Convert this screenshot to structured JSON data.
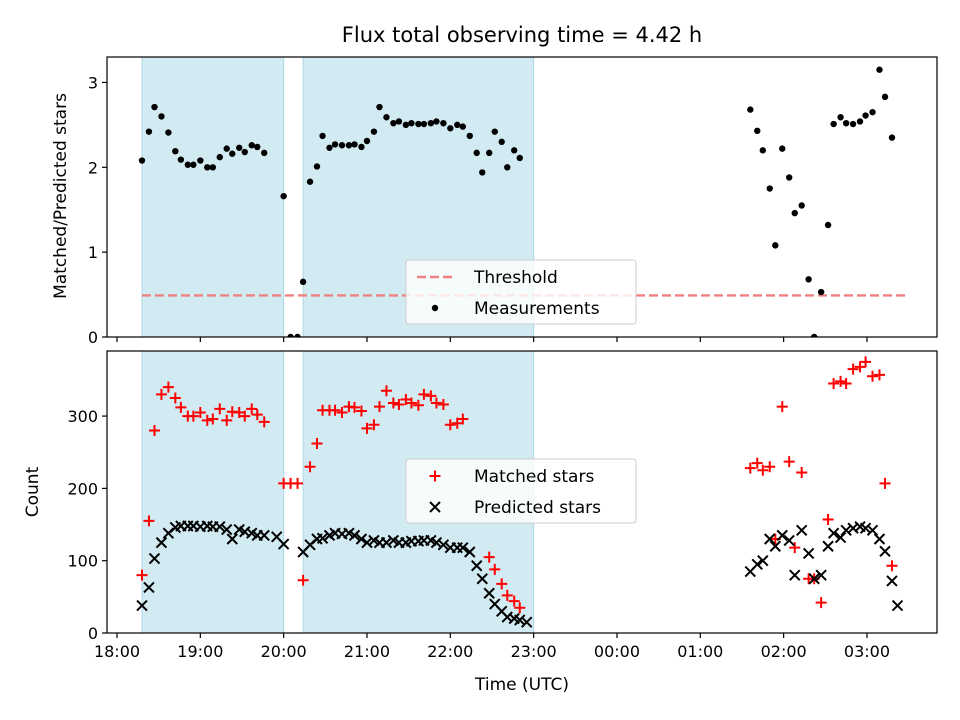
{
  "chart_data": [
    {
      "type": "scatter",
      "title": "Flux total observing time = 4.42 h",
      "ylabel": "Matched/Predicted stars",
      "xlabel": "",
      "ylim": [
        0,
        3.3
      ],
      "yticks": [
        0,
        1,
        2,
        3
      ],
      "legend_placement": "lower-center",
      "shaded_intervals": [
        [
          "18:18",
          "20:00"
        ],
        [
          "20:14",
          "23:00"
        ]
      ],
      "shade_color": "#add8e6",
      "threshold": {
        "name": "Threshold",
        "value": 0.49,
        "x_range": [
          "18:18",
          "03:30"
        ],
        "color": "#f08080"
      },
      "series": [
        {
          "name": "Measurements",
          "color": "#000000",
          "marker": "dot",
          "points": [
            [
              "18:18",
              2.08
            ],
            [
              "18:23",
              2.42
            ],
            [
              "18:27",
              2.71
            ],
            [
              "18:32",
              2.6
            ],
            [
              "18:37",
              2.41
            ],
            [
              "18:42",
              2.19
            ],
            [
              "18:46",
              2.09
            ],
            [
              "18:51",
              2.03
            ],
            [
              "18:55",
              2.03
            ],
            [
              "19:00",
              2.08
            ],
            [
              "19:05",
              2.0
            ],
            [
              "19:09",
              2.0
            ],
            [
              "19:14",
              2.12
            ],
            [
              "19:19",
              2.22
            ],
            [
              "19:23",
              2.16
            ],
            [
              "19:28",
              2.23
            ],
            [
              "19:32",
              2.18
            ],
            [
              "19:37",
              2.26
            ],
            [
              "19:41",
              2.24
            ],
            [
              "19:46",
              2.17
            ],
            [
              "20:00",
              1.66
            ],
            [
              "20:05",
              0.0
            ],
            [
              "20:10",
              0.0
            ],
            [
              "20:14",
              0.65
            ],
            [
              "20:19",
              1.83
            ],
            [
              "20:24",
              2.01
            ],
            [
              "20:28",
              2.37
            ],
            [
              "20:33",
              2.23
            ],
            [
              "20:37",
              2.27
            ],
            [
              "20:42",
              2.26
            ],
            [
              "20:47",
              2.26
            ],
            [
              "20:51",
              2.27
            ],
            [
              "20:56",
              2.24
            ],
            [
              "21:00",
              2.31
            ],
            [
              "21:05",
              2.42
            ],
            [
              "21:09",
              2.71
            ],
            [
              "21:14",
              2.59
            ],
            [
              "21:19",
              2.52
            ],
            [
              "21:23",
              2.54
            ],
            [
              "21:28",
              2.5
            ],
            [
              "21:32",
              2.52
            ],
            [
              "21:37",
              2.51
            ],
            [
              "21:41",
              2.51
            ],
            [
              "21:46",
              2.52
            ],
            [
              "21:50",
              2.54
            ],
            [
              "21:55",
              2.52
            ],
            [
              "22:00",
              2.46
            ],
            [
              "22:05",
              2.5
            ],
            [
              "22:09",
              2.48
            ],
            [
              "22:14",
              2.37
            ],
            [
              "22:19",
              2.17
            ],
            [
              "22:23",
              1.94
            ],
            [
              "22:28",
              2.17
            ],
            [
              "22:32",
              2.42
            ],
            [
              "22:37",
              2.3
            ],
            [
              "22:41",
              2.0
            ],
            [
              "22:46",
              2.2
            ],
            [
              "22:50",
              2.11
            ],
            [
              "01:36",
              2.68
            ],
            [
              "01:41",
              2.43
            ],
            [
              "01:45",
              2.2
            ],
            [
              "01:50",
              1.75
            ],
            [
              "01:54",
              1.08
            ],
            [
              "01:59",
              2.22
            ],
            [
              "02:04",
              1.88
            ],
            [
              "02:08",
              1.46
            ],
            [
              "02:13",
              1.55
            ],
            [
              "02:18",
              0.68
            ],
            [
              "02:22",
              0.0
            ],
            [
              "02:27",
              0.53
            ],
            [
              "02:32",
              1.32
            ],
            [
              "02:36",
              2.51
            ],
            [
              "02:41",
              2.59
            ],
            [
              "02:45",
              2.52
            ],
            [
              "02:50",
              2.51
            ],
            [
              "02:55",
              2.54
            ],
            [
              "02:59",
              2.61
            ],
            [
              "03:04",
              2.65
            ],
            [
              "03:09",
              3.15
            ],
            [
              "03:13",
              2.83
            ],
            [
              "03:18",
              2.35
            ]
          ]
        }
      ],
      "legend": [
        "Threshold",
        "Measurements"
      ]
    },
    {
      "type": "scatter",
      "title": "",
      "ylabel": "Count",
      "xlabel": "Time (UTC)",
      "ylim": [
        0,
        390
      ],
      "yticks": [
        0,
        100,
        200,
        300
      ],
      "legend_placement": "center",
      "x_tick_labels": [
        "18:00",
        "19:00",
        "20:00",
        "21:00",
        "22:00",
        "23:00",
        "00:00",
        "01:00",
        "02:00",
        "03:00"
      ],
      "series": [
        {
          "name": "Matched stars",
          "color": "#ff0000",
          "marker": "plus",
          "points": [
            [
              "18:18",
              80
            ],
            [
              "18:23",
              155
            ],
            [
              "18:27",
              280
            ],
            [
              "18:32",
              330
            ],
            [
              "18:37",
              340
            ],
            [
              "18:42",
              325
            ],
            [
              "18:46",
              312
            ],
            [
              "18:51",
              300
            ],
            [
              "18:55",
              300
            ],
            [
              "19:00",
              305
            ],
            [
              "19:05",
              294
            ],
            [
              "19:09",
              296
            ],
            [
              "19:14",
              310
            ],
            [
              "19:19",
              294
            ],
            [
              "19:23",
              306
            ],
            [
              "19:28",
              305
            ],
            [
              "19:32",
              300
            ],
            [
              "19:37",
              310
            ],
            [
              "19:41",
              302
            ],
            [
              "19:46",
              292
            ],
            [
              "20:00",
              207
            ],
            [
              "20:05",
              207
            ],
            [
              "20:10",
              207
            ],
            [
              "20:14",
              73
            ],
            [
              "20:19",
              230
            ],
            [
              "20:24",
              262
            ],
            [
              "20:28",
              308
            ],
            [
              "20:33",
              308
            ],
            [
              "20:37",
              308
            ],
            [
              "20:42",
              305
            ],
            [
              "20:47",
              313
            ],
            [
              "20:51",
              312
            ],
            [
              "20:56",
              307
            ],
            [
              "21:00",
              283
            ],
            [
              "21:05",
              288
            ],
            [
              "21:09",
              313
            ],
            [
              "21:14",
              335
            ],
            [
              "21:19",
              318
            ],
            [
              "21:23",
              316
            ],
            [
              "21:28",
              323
            ],
            [
              "21:32",
              318
            ],
            [
              "21:37",
              315
            ],
            [
              "21:41",
              330
            ],
            [
              "21:46",
              328
            ],
            [
              "21:50",
              318
            ],
            [
              "21:55",
              316
            ],
            [
              "22:00",
              288
            ],
            [
              "22:05",
              290
            ],
            [
              "22:09",
              296
            ],
            [
              "22:28",
              105
            ],
            [
              "22:32",
              88
            ],
            [
              "22:37",
              68
            ],
            [
              "22:41",
              52
            ],
            [
              "22:46",
              44
            ],
            [
              "22:50",
              35
            ],
            [
              "01:36",
              228
            ],
            [
              "01:41",
              235
            ],
            [
              "01:45",
              225
            ],
            [
              "01:50",
              230
            ],
            [
              "01:54",
              130
            ],
            [
              "01:59",
              313
            ],
            [
              "02:04",
              237
            ],
            [
              "02:08",
              118
            ],
            [
              "02:13",
              222
            ],
            [
              "02:18",
              75
            ],
            [
              "02:22",
              75
            ],
            [
              "02:27",
              42
            ],
            [
              "02:32",
              157
            ],
            [
              "02:36",
              345
            ],
            [
              "02:41",
              348
            ],
            [
              "02:45",
              345
            ],
            [
              "02:50",
              365
            ],
            [
              "02:55",
              368
            ],
            [
              "02:59",
              375
            ],
            [
              "03:04",
              355
            ],
            [
              "03:09",
              357
            ],
            [
              "03:13",
              207
            ],
            [
              "03:18",
              93
            ]
          ]
        },
        {
          "name": "Predicted stars",
          "color": "#000000",
          "marker": "x",
          "points": [
            [
              "18:18",
              38
            ],
            [
              "18:23",
              63
            ],
            [
              "18:27",
              103
            ],
            [
              "18:32",
              125
            ],
            [
              "18:37",
              138
            ],
            [
              "18:42",
              146
            ],
            [
              "18:46",
              148
            ],
            [
              "18:51",
              148
            ],
            [
              "18:55",
              148
            ],
            [
              "19:00",
              147
            ],
            [
              "19:05",
              148
            ],
            [
              "19:09",
              147
            ],
            [
              "19:14",
              147
            ],
            [
              "19:19",
              143
            ],
            [
              "19:23",
              130
            ],
            [
              "19:28",
              143
            ],
            [
              "19:32",
              140
            ],
            [
              "19:37",
              138
            ],
            [
              "19:41",
              135
            ],
            [
              "19:46",
              135
            ],
            [
              "19:55",
              133
            ],
            [
              "20:00",
              123
            ],
            [
              "20:14",
              112
            ],
            [
              "20:19",
              122
            ],
            [
              "20:24",
              130
            ],
            [
              "20:28",
              131
            ],
            [
              "20:33",
              135
            ],
            [
              "20:37",
              138
            ],
            [
              "20:42",
              137
            ],
            [
              "20:47",
              138
            ],
            [
              "20:51",
              135
            ],
            [
              "20:56",
              130
            ],
            [
              "21:00",
              125
            ],
            [
              "21:05",
              128
            ],
            [
              "21:09",
              125
            ],
            [
              "21:14",
              125
            ],
            [
              "21:19",
              128
            ],
            [
              "21:23",
              125
            ],
            [
              "21:28",
              125
            ],
            [
              "21:32",
              127
            ],
            [
              "21:37",
              127
            ],
            [
              "21:41",
              128
            ],
            [
              "21:46",
              128
            ],
            [
              "21:50",
              125
            ],
            [
              "21:55",
              122
            ],
            [
              "22:00",
              118
            ],
            [
              "22:05",
              118
            ],
            [
              "22:09",
              118
            ],
            [
              "22:14",
              112
            ],
            [
              "22:19",
              93
            ],
            [
              "22:23",
              75
            ],
            [
              "22:28",
              55
            ],
            [
              "22:32",
              40
            ],
            [
              "22:37",
              30
            ],
            [
              "22:41",
              22
            ],
            [
              "22:46",
              20
            ],
            [
              "22:50",
              18
            ],
            [
              "22:55",
              15
            ],
            [
              "01:36",
              85
            ],
            [
              "01:41",
              95
            ],
            [
              "01:45",
              100
            ],
            [
              "01:50",
              130
            ],
            [
              "01:54",
              120
            ],
            [
              "01:59",
              135
            ],
            [
              "02:04",
              128
            ],
            [
              "02:08",
              80
            ],
            [
              "02:13",
              142
            ],
            [
              "02:18",
              110
            ],
            [
              "02:22",
              75
            ],
            [
              "02:27",
              80
            ],
            [
              "02:32",
              120
            ],
            [
              "02:36",
              138
            ],
            [
              "02:41",
              132
            ],
            [
              "02:45",
              142
            ],
            [
              "02:50",
              145
            ],
            [
              "02:55",
              147
            ],
            [
              "02:59",
              145
            ],
            [
              "03:04",
              142
            ],
            [
              "03:09",
              130
            ],
            [
              "03:13",
              113
            ],
            [
              "03:18",
              72
            ],
            [
              "03:22",
              38
            ]
          ]
        }
      ],
      "legend": [
        "Matched stars",
        "Predicted stars"
      ]
    }
  ]
}
